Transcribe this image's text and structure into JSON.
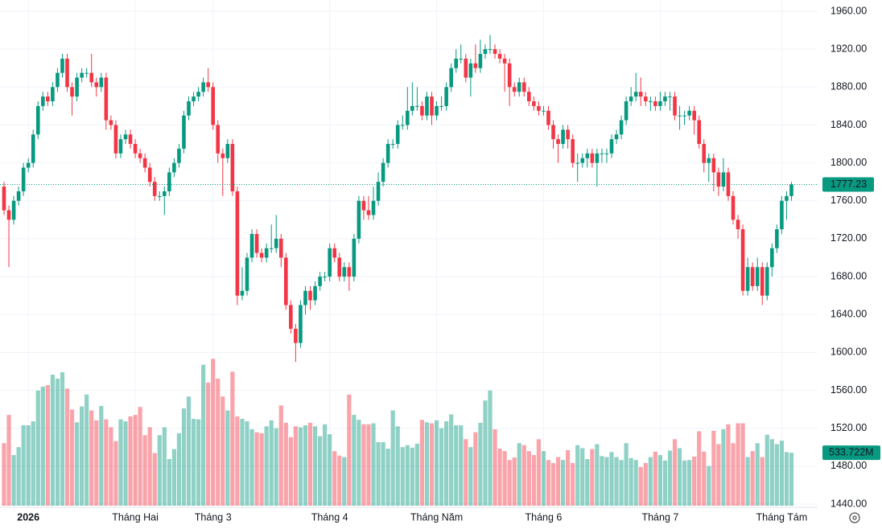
{
  "chart_data": {
    "type": "candlestick",
    "open": [
      1775,
      1750,
      1740,
      1760,
      1770,
      1795,
      1800,
      1830,
      1860,
      1870,
      1865,
      1880,
      1895,
      1910,
      1880,
      1870,
      1890,
      1895,
      1895,
      1885,
      1880,
      1890,
      1845,
      1840,
      1810,
      1825,
      1830,
      1820,
      1810,
      1805,
      1795,
      1780,
      1765,
      1765,
      1770,
      1790,
      1800,
      1815,
      1850,
      1865,
      1870,
      1875,
      1885,
      1880,
      1840,
      1810,
      1805,
      1820,
      1770,
      1660,
      1665,
      1700,
      1725,
      1705,
      1700,
      1710,
      1710,
      1720,
      1700,
      1650,
      1625,
      1610,
      1650,
      1665,
      1655,
      1670,
      1680,
      1680,
      1710,
      1700,
      1680,
      1690,
      1680,
      1720,
      1760,
      1750,
      1745,
      1760,
      1780,
      1800,
      1820,
      1820,
      1840,
      1840,
      1855,
      1860,
      1860,
      1850,
      1870,
      1850,
      1860,
      1860,
      1880,
      1900,
      1910,
      1910,
      1890,
      1905,
      1900,
      1915,
      1920,
      1920,
      1915,
      1910,
      1905,
      1880,
      1875,
      1885,
      1875,
      1865,
      1860,
      1855,
      1855,
      1840,
      1825,
      1820,
      1835,
      1825,
      1800,
      1800,
      1805,
      1810,
      1800,
      1810,
      1810,
      1810,
      1825,
      1830,
      1845,
      1865,
      1870,
      1875,
      1870,
      1865,
      1865,
      1860,
      1865,
      1870,
      1870,
      1850,
      1850,
      1850,
      1855,
      1845,
      1820,
      1800,
      1805,
      1790,
      1775,
      1790,
      1765,
      1740,
      1730,
      1665,
      1690,
      1670,
      1690,
      1660,
      1690,
      1710,
      1730,
      1760,
      1765
    ],
    "high": [
      1780,
      1755,
      1765,
      1775,
      1800,
      1805,
      1835,
      1865,
      1875,
      1875,
      1885,
      1900,
      1915,
      1915,
      1885,
      1895,
      1900,
      1900,
      1915,
      1890,
      1895,
      1895,
      1850,
      1845,
      1830,
      1835,
      1835,
      1825,
      1815,
      1810,
      1800,
      1785,
      1770,
      1775,
      1795,
      1805,
      1820,
      1855,
      1870,
      1875,
      1880,
      1890,
      1900,
      1885,
      1845,
      1815,
      1825,
      1825,
      1775,
      1690,
      1705,
      1730,
      1730,
      1710,
      1715,
      1735,
      1745,
      1725,
      1705,
      1655,
      1630,
      1655,
      1670,
      1670,
      1675,
      1685,
      1685,
      1715,
      1715,
      1705,
      1695,
      1695,
      1725,
      1765,
      1765,
      1765,
      1775,
      1790,
      1805,
      1825,
      1825,
      1845,
      1850,
      1880,
      1885,
      1880,
      1865,
      1875,
      1875,
      1865,
      1870,
      1885,
      1905,
      1920,
      1925,
      1915,
      1910,
      1925,
      1930,
      1925,
      1935,
      1925,
      1920,
      1915,
      1910,
      1885,
      1890,
      1890,
      1880,
      1870,
      1865,
      1860,
      1860,
      1845,
      1830,
      1840,
      1840,
      1830,
      1810,
      1810,
      1815,
      1815,
      1815,
      1815,
      1815,
      1830,
      1835,
      1850,
      1870,
      1880,
      1895,
      1890,
      1875,
      1870,
      1870,
      1875,
      1875,
      1875,
      1875,
      1860,
      1855,
      1860,
      1860,
      1850,
      1825,
      1810,
      1810,
      1795,
      1805,
      1795,
      1770,
      1745,
      1735,
      1700,
      1695,
      1700,
      1695,
      1695,
      1715,
      1735,
      1765,
      1770,
      1780
    ],
    "low": [
      1745,
      1690,
      1735,
      1755,
      1765,
      1790,
      1795,
      1825,
      1855,
      1860,
      1860,
      1875,
      1890,
      1875,
      1850,
      1865,
      1885,
      1890,
      1880,
      1870,
      1875,
      1835,
      1835,
      1805,
      1805,
      1820,
      1815,
      1805,
      1800,
      1790,
      1775,
      1760,
      1760,
      1745,
      1765,
      1785,
      1795,
      1810,
      1845,
      1860,
      1865,
      1870,
      1875,
      1835,
      1800,
      1765,
      1800,
      1765,
      1650,
      1655,
      1660,
      1695,
      1700,
      1695,
      1695,
      1705,
      1705,
      1690,
      1645,
      1620,
      1590,
      1605,
      1640,
      1645,
      1650,
      1665,
      1675,
      1675,
      1695,
      1675,
      1675,
      1665,
      1675,
      1715,
      1740,
      1740,
      1740,
      1755,
      1775,
      1795,
      1815,
      1815,
      1835,
      1835,
      1850,
      1855,
      1845,
      1845,
      1840,
      1845,
      1855,
      1855,
      1875,
      1895,
      1905,
      1885,
      1870,
      1895,
      1895,
      1910,
      1915,
      1910,
      1905,
      1875,
      1860,
      1870,
      1870,
      1870,
      1860,
      1855,
      1850,
      1850,
      1835,
      1815,
      1800,
      1815,
      1815,
      1795,
      1780,
      1795,
      1795,
      1795,
      1775,
      1800,
      1800,
      1805,
      1820,
      1825,
      1840,
      1860,
      1865,
      1860,
      1860,
      1855,
      1855,
      1855,
      1860,
      1855,
      1845,
      1835,
      1840,
      1845,
      1830,
      1815,
      1790,
      1780,
      1770,
      1765,
      1770,
      1760,
      1735,
      1720,
      1660,
      1660,
      1665,
      1665,
      1650,
      1655,
      1680,
      1705,
      1725,
      1740,
      1760
    ],
    "close": [
      1750,
      1740,
      1760,
      1770,
      1795,
      1800,
      1830,
      1860,
      1870,
      1865,
      1880,
      1895,
      1910,
      1880,
      1870,
      1890,
      1895,
      1895,
      1885,
      1880,
      1890,
      1845,
      1840,
      1810,
      1825,
      1830,
      1820,
      1810,
      1805,
      1795,
      1780,
      1765,
      1765,
      1770,
      1790,
      1800,
      1815,
      1850,
      1865,
      1870,
      1875,
      1885,
      1880,
      1840,
      1810,
      1805,
      1820,
      1770,
      1660,
      1665,
      1700,
      1725,
      1705,
      1700,
      1710,
      1710,
      1720,
      1700,
      1650,
      1625,
      1610,
      1650,
      1665,
      1655,
      1670,
      1680,
      1680,
      1710,
      1700,
      1680,
      1690,
      1680,
      1720,
      1760,
      1750,
      1745,
      1760,
      1780,
      1800,
      1820,
      1820,
      1840,
      1840,
      1855,
      1860,
      1860,
      1850,
      1870,
      1850,
      1860,
      1860,
      1880,
      1900,
      1910,
      1910,
      1890,
      1905,
      1900,
      1915,
      1920,
      1920,
      1915,
      1910,
      1905,
      1880,
      1875,
      1885,
      1875,
      1865,
      1860,
      1855,
      1855,
      1840,
      1825,
      1820,
      1835,
      1825,
      1800,
      1800,
      1805,
      1810,
      1800,
      1810,
      1810,
      1810,
      1825,
      1830,
      1845,
      1865,
      1870,
      1875,
      1870,
      1865,
      1865,
      1860,
      1865,
      1870,
      1870,
      1850,
      1850,
      1850,
      1855,
      1845,
      1820,
      1800,
      1805,
      1790,
      1775,
      1790,
      1765,
      1740,
      1730,
      1665,
      1690,
      1670,
      1690,
      1660,
      1690,
      1710,
      1730,
      1760,
      1765,
      1777.23
    ],
    "volume": [
      630,
      915,
      510,
      590,
      810,
      810,
      850,
      1160,
      1200,
      1215,
      1320,
      1280,
      1345,
      1180,
      970,
      840,
      1000,
      1120,
      960,
      860,
      1005,
      870,
      790,
      650,
      870,
      850,
      900,
      915,
      995,
      710,
      790,
      530,
      710,
      790,
      470,
      570,
      730,
      980,
      1100,
      875,
      870,
      1420,
      1240,
      1480,
      1280,
      1100,
      960,
      1350,
      900,
      875,
      850,
      770,
      740,
      730,
      800,
      860,
      780,
      1010,
      835,
      690,
      800,
      790,
      810,
      835,
      800,
      700,
      820,
      720,
      550,
      505,
      490,
      1120,
      915,
      865,
      820,
      820,
      830,
      640,
      640,
      575,
      960,
      800,
      590,
      610,
      585,
      625,
      865,
      840,
      830,
      860,
      780,
      850,
      920,
      810,
      810,
      670,
      590,
      740,
      835,
      1060,
      1160,
      770,
      575,
      550,
      460,
      485,
      630,
      610,
      550,
      510,
      670,
      550,
      460,
      430,
      490,
      460,
      560,
      430,
      610,
      580,
      470,
      570,
      620,
      500,
      490,
      540,
      490,
      460,
      630,
      480,
      460,
      390,
      430,
      490,
      545,
      510,
      455,
      555,
      670,
      580,
      455,
      460,
      495,
      750,
      545,
      400,
      755,
      620,
      770,
      820,
      630,
      830,
      830,
      490,
      550,
      630,
      490,
      715,
      670,
      620,
      655,
      540,
      533.722
    ],
    "last_volume_label": "533.722M",
    "categories": [
      null,
      null,
      null,
      null,
      null,
      "2026",
      null,
      null,
      null,
      null,
      null,
      null,
      null,
      null,
      null,
      null,
      null,
      null,
      null,
      null,
      null,
      null,
      null,
      null,
      null,
      null,
      null,
      "Tháng Hai",
      null,
      null,
      null,
      null,
      null,
      null,
      null,
      null,
      null,
      null,
      null,
      null,
      null,
      null,
      null,
      "Tháng 3",
      null,
      null,
      null,
      null,
      null,
      null,
      null,
      null,
      null,
      null,
      null,
      null,
      null,
      null,
      null,
      null,
      null,
      null,
      null,
      null,
      null,
      null,
      null,
      "Tháng 4",
      null,
      null,
      null,
      null,
      null,
      null,
      null,
      null,
      null,
      null,
      null,
      null,
      null,
      null,
      null,
      null,
      null,
      null,
      null,
      null,
      null,
      "Tháng Năm",
      null,
      null,
      null,
      null,
      null,
      null,
      null,
      null,
      null,
      null,
      null,
      null,
      null,
      null,
      null,
      null,
      null,
      null,
      null,
      null,
      null,
      "Tháng 6",
      null,
      null,
      null,
      null,
      null,
      null,
      null,
      null,
      null,
      null,
      null,
      null,
      null,
      null,
      null,
      null,
      null,
      null,
      null,
      null,
      null,
      null,
      null,
      "Tháng 7",
      null,
      null,
      null,
      null,
      null,
      null,
      null,
      null,
      null,
      null,
      null,
      null,
      null,
      null,
      null,
      null,
      null,
      null,
      null,
      null,
      null,
      null,
      null,
      null,
      "Tháng Tám",
      null,
      null
    ],
    "ylim": [
      1440,
      1960
    ],
    "yticks": [
      {
        "value": 1440,
        "label": "1440.00"
      },
      {
        "value": 1480,
        "label": "1480.00"
      },
      {
        "value": 1520,
        "label": "1520.00"
      },
      {
        "value": 1560,
        "label": "1560.00"
      },
      {
        "value": 1600,
        "label": "1600.00"
      },
      {
        "value": 1640,
        "label": "1640.00"
      },
      {
        "value": 1680,
        "label": "1680.00"
      },
      {
        "value": 1720,
        "label": "1720.00"
      },
      {
        "value": 1760,
        "label": "1760.00"
      },
      {
        "value": 1800,
        "label": "1800.00"
      },
      {
        "value": 1840,
        "label": "1840.00"
      },
      {
        "value": 1880,
        "label": "1880.00"
      },
      {
        "value": 1920,
        "label": "1920.00"
      },
      {
        "value": 1960,
        "label": "1960.00"
      }
    ],
    "up_color": "#089981",
    "down_color": "#f23645",
    "grid": true
  }
}
